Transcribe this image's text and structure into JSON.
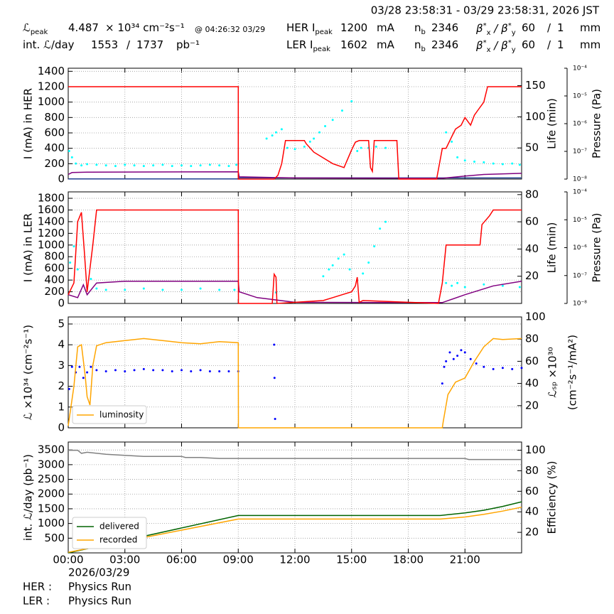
{
  "header": {
    "range": "03/28 23:58:31 - 03/29 23:58:31, 2026 JST",
    "rows": [
      {
        "label": "ℒ",
        "label_sub": "peak",
        "value": 4.487,
        "unit": "× 10³⁴ cm⁻²s⁻¹",
        "time": "@ 04:26:32 03/29",
        "ring": "HER I",
        "ring_sub": "peak",
        "current": 1200,
        "current_unit": "mA",
        "nb": "n",
        "nb_sub": "b",
        "bunches": 2346,
        "beta": "β",
        "beta_sup": "*",
        "beta_sub": "x",
        "beta_sep": "/ β",
        "beta_sup2": "*",
        "beta_sub2": "y",
        "beta_x": 60,
        "slash": "/",
        "beta_y": 1,
        "beta_unit": "mm"
      },
      {
        "label": "int. ℒ/day",
        "value": 1553,
        "sep": "/",
        "value2": 1737,
        "unit": "pb⁻¹",
        "ring": "LER I",
        "ring_sub": "peak",
        "current": 1602,
        "current_unit": "mA",
        "nb": "n",
        "nb_sub": "b",
        "bunches": 2346,
        "beta": "β",
        "beta_sup": "*",
        "beta_sub": "x",
        "beta_sep": "/ β",
        "beta_sup2": "*",
        "beta_sub2": "y",
        "beta_x": 60,
        "slash": "/",
        "beta_y": 1,
        "beta_unit": "mm"
      }
    ]
  },
  "chart_data": [
    {
      "type": "line",
      "ylabel": "I (mA) in HER",
      "y2label": [
        "Life (min)"
      ],
      "y3label": "Pressure (Pa)",
      "grid": true,
      "xlim": [
        0,
        24
      ],
      "ylim": [
        0,
        1440
      ],
      "yticks": [
        0,
        200,
        400,
        600,
        800,
        1000,
        1200,
        1400
      ],
      "y2lim": [
        0,
        178
      ],
      "y2ticks": [
        50,
        100,
        150
      ],
      "y3lim": [
        1e-08,
        0.0001
      ],
      "y3log": true,
      "y3ticks": [
        {
          "value": 1e-08,
          "label": "10⁻⁸"
        },
        {
          "value": 1e-07,
          "label": "10⁻⁷"
        },
        {
          "value": 1e-06,
          "label": "10⁻⁶"
        },
        {
          "value": 1e-05,
          "label": "10⁻⁵"
        },
        {
          "value": 0.0001,
          "label": "10⁻⁴"
        }
      ],
      "series": [
        {
          "color": "#00ffff",
          "mode": "markers",
          "axis": "y2",
          "x": [
            0.05,
            0.2,
            0.4,
            0.7,
            1.0,
            1.5,
            2.0,
            2.5,
            3.0,
            3.5,
            4.0,
            4.5,
            5,
            5.5,
            6,
            6.5,
            7,
            7.5,
            8,
            8.5,
            8.9,
            10.5,
            10.8,
            11.0,
            11.3,
            11.6,
            12.0,
            12.5,
            12.8,
            13.0,
            13.3,
            13.6,
            14.0,
            14.5,
            15.0,
            15.3,
            15.5,
            15.9,
            16.3,
            16.8,
            20.0,
            20.3,
            20.6,
            21,
            21.5,
            22,
            22.5,
            23,
            23.5,
            23.9
          ],
          "values": [
            45,
            35,
            25,
            22,
            24,
            23,
            22,
            21,
            23,
            22,
            21,
            22,
            23,
            21,
            22,
            21,
            22,
            23,
            22,
            21,
            23,
            65,
            70,
            75,
            80,
            50,
            48,
            52,
            60,
            65,
            75,
            85,
            95,
            110,
            125,
            45,
            50,
            50,
            52,
            50,
            75,
            60,
            35,
            30,
            28,
            27,
            25,
            24,
            25,
            23
          ]
        },
        {
          "color": "#1f3f8f",
          "mode": "lines",
          "x": [
            0,
            9,
            9.05,
            24
          ],
          "values": [
            2,
            2,
            15,
            15
          ]
        },
        {
          "color": "#800080",
          "mode": "lines",
          "x": [
            0,
            0.2,
            1,
            9,
            9.05,
            12,
            19.8,
            21,
            22,
            24
          ],
          "values": [
            60,
            85,
            90,
            95,
            30,
            15,
            10,
            40,
            60,
            75
          ]
        },
        {
          "color": "#ff0000",
          "mode": "lines",
          "x": [
            0,
            9,
            9,
            10.9,
            11.1,
            11.3,
            11.5,
            12.5,
            12.6,
            13,
            14,
            14.6,
            15.0,
            15.2,
            15.4,
            15.9,
            16.0,
            16.1,
            16.2,
            17.4,
            17.5,
            19.5,
            19.8,
            20.0,
            20.3,
            20.5,
            20.8,
            21.0,
            21.3,
            21.5,
            21.7,
            22.0,
            22.2,
            24
          ],
          "values": [
            1200,
            1200,
            0,
            0,
            50,
            200,
            500,
            500,
            460,
            350,
            200,
            150,
            380,
            480,
            500,
            500,
            150,
            100,
            500,
            500,
            0,
            0,
            400,
            400,
            550,
            650,
            700,
            800,
            700,
            830,
            900,
            1000,
            1200,
            1200
          ]
        }
      ]
    },
    {
      "type": "line",
      "ylabel": "I (mA) in LER",
      "y2label": [
        "Life (min)"
      ],
      "y3label": "Pressure (Pa)",
      "grid": true,
      "xlim": [
        0,
        24
      ],
      "ylim": [
        0,
        1910
      ],
      "yticks": [
        0,
        200,
        400,
        600,
        800,
        1000,
        1200,
        1400,
        1600,
        1800
      ],
      "y2lim": [
        0,
        82
      ],
      "y2ticks": [
        20,
        40,
        60,
        80
      ],
      "y3lim": [
        1e-08,
        0.0001
      ],
      "y3log": true,
      "y3ticks": [
        {
          "value": 1e-08,
          "label": "10⁻⁸"
        },
        {
          "value": 1e-07,
          "label": "10⁻⁷"
        },
        {
          "value": 1e-06,
          "label": "10⁻⁶"
        },
        {
          "value": 1e-05,
          "label": "10⁻⁵"
        },
        {
          "value": 0.0001,
          "label": "10⁻⁴"
        }
      ],
      "series": [
        {
          "color": "#00ffff",
          "mode": "markers",
          "axis": "y2",
          "x": [
            0.1,
            0.3,
            0.5,
            1.0,
            1.2,
            1.5,
            2,
            3,
            4,
            5,
            6,
            7,
            8,
            8.8,
            11.0,
            13.5,
            13.8,
            14.0,
            14.3,
            14.6,
            14.9,
            15.6,
            15.9,
            16.2,
            16.5,
            16.8,
            20.0,
            20.3,
            20.6,
            21,
            22,
            23,
            23.9
          ],
          "values": [
            30,
            42,
            25,
            12,
            18,
            11,
            10,
            10,
            11,
            10,
            10,
            11,
            10,
            10,
            8,
            20,
            25,
            28,
            33,
            36,
            25,
            22,
            30,
            42,
            55,
            60,
            15,
            13,
            15,
            12,
            14,
            13,
            12
          ]
        },
        {
          "color": "#800080",
          "mode": "lines",
          "x": [
            0,
            0.5,
            0.8,
            1.0,
            1.5,
            3,
            9,
            9.05,
            10,
            12,
            19.8,
            21,
            22.5,
            24
          ],
          "values": [
            150,
            100,
            320,
            150,
            350,
            380,
            380,
            200,
            100,
            20,
            15,
            150,
            300,
            380
          ]
        },
        {
          "color": "#ff0000",
          "mode": "lines",
          "x": [
            0,
            0.3,
            0.5,
            0.7,
            0.85,
            1.0,
            1.3,
            1.5,
            1.7,
            9,
            9.01,
            10.8,
            10.9,
            11.0,
            11.05,
            13.5,
            14.0,
            14.5,
            15.0,
            15.2,
            15.3,
            15.4,
            15.6,
            19.6,
            19.8,
            20.0,
            21.8,
            21.9,
            22.3,
            22.5,
            24
          ],
          "values": [
            150,
            350,
            1400,
            1560,
            900,
            200,
            1000,
            1600,
            1600,
            1600,
            0,
            0,
            500,
            450,
            0,
            50,
            100,
            150,
            200,
            300,
            450,
            20,
            50,
            0,
            350,
            1000,
            1000,
            1350,
            1500,
            1600,
            1600
          ]
        }
      ]
    },
    {
      "type": "line",
      "ylabel": "ℒ ×10³⁴ (cm⁻²s⁻¹)",
      "y2label": [
        "ℒₛₚ ×10³⁰",
        "(cm⁻²s⁻¹/mA²)"
      ],
      "grid": true,
      "legend": "lower left",
      "xlim": [
        0,
        24
      ],
      "ylim": [
        0,
        5.34
      ],
      "yticks": [
        0,
        1,
        2,
        3,
        4,
        5
      ],
      "y2lim": [
        0,
        100
      ],
      "y2ticks": [
        20,
        40,
        60,
        80,
        100
      ],
      "series": [
        {
          "color": "#0000ff",
          "mode": "markers",
          "axis": "y2",
          "x": [
            0.05,
            0.2,
            0.4,
            0.6,
            0.8,
            1.0,
            1.2,
            1.5,
            2,
            2.5,
            3,
            3.5,
            4,
            4.5,
            5,
            5.5,
            6,
            6.5,
            7,
            7.5,
            8,
            8.5,
            9,
            10.9,
            10.92,
            10.95,
            19.8,
            19.9,
            20.0,
            20.2,
            20.4,
            20.6,
            20.8,
            21.0,
            21.3,
            21.6,
            22,
            22.5,
            23,
            23.5,
            24
          ],
          "values": [
            35,
            55,
            50,
            55,
            45,
            50,
            55,
            52,
            51,
            52,
            51,
            52,
            53,
            52,
            52,
            51,
            52,
            51,
            52,
            51,
            51,
            51,
            51,
            75,
            45,
            8,
            40,
            55,
            60,
            68,
            62,
            65,
            70,
            68,
            62,
            58,
            55,
            53,
            54,
            53,
            54
          ]
        },
        {
          "name": "luminosity",
          "color": "#ffa500",
          "mode": "lines",
          "x": [
            0,
            0.3,
            0.5,
            0.7,
            0.9,
            1.0,
            1.15,
            1.3,
            1.5,
            2,
            3,
            4,
            5,
            6,
            7,
            8,
            9,
            9.01,
            19.8,
            19.85,
            20.1,
            20.5,
            21,
            21.5,
            22,
            22.5,
            23,
            24
          ],
          "values": [
            0.1,
            2.0,
            3.9,
            4.0,
            2.5,
            1.5,
            1.1,
            3.0,
            3.95,
            4.1,
            4.2,
            4.3,
            4.2,
            4.1,
            4.05,
            4.15,
            4.1,
            0,
            0,
            0.3,
            1.6,
            2.2,
            2.4,
            3.2,
            3.9,
            4.3,
            4.25,
            4.3
          ]
        }
      ]
    },
    {
      "type": "line",
      "ylabel": "int. ℒ/day (pb⁻¹)",
      "y2label": [
        "Efficiency (%)"
      ],
      "grid": true,
      "legend": "lower left",
      "xlim": [
        0,
        24
      ],
      "ylim": [
        0,
        3770
      ],
      "yticks": [
        500,
        1000,
        1500,
        2000,
        2500,
        3000,
        3500
      ],
      "y2lim": [
        0,
        108
      ],
      "y2ticks": [
        20,
        40,
        60,
        80,
        100
      ],
      "xticks": [
        {
          "value": 0,
          "label": "00:00"
        },
        {
          "value": 3,
          "label": "03:00"
        },
        {
          "value": 6,
          "label": "06:00"
        },
        {
          "value": 9,
          "label": "09:00"
        },
        {
          "value": 12,
          "label": "12:00"
        },
        {
          "value": 15,
          "label": "15:00"
        },
        {
          "value": 18,
          "label": "18:00"
        },
        {
          "value": 21,
          "label": "21:00"
        }
      ],
      "series": [
        {
          "color": "#808080",
          "mode": "lines",
          "axis": "y2",
          "x": [
            0,
            0.5,
            0.7,
            1.0,
            2,
            3,
            4,
            5,
            6,
            6.2,
            7,
            8,
            9,
            12,
            15,
            20,
            21,
            21.2,
            24
          ],
          "values": [
            100,
            100,
            97,
            98,
            96,
            95,
            94,
            94,
            94,
            93,
            93,
            92,
            92,
            92,
            92,
            92,
            92,
            91,
            91
          ]
        },
        {
          "name": "delivered",
          "color": "#006400",
          "mode": "lines",
          "x": [
            0,
            9,
            19.7,
            21,
            22,
            23,
            24
          ],
          "values": [
            0,
            1270,
            1270,
            1360,
            1450,
            1580,
            1737
          ]
        },
        {
          "name": "recorded",
          "color": "#ffa500",
          "mode": "lines",
          "x": [
            0,
            9,
            19.7,
            21,
            22,
            23,
            24
          ],
          "values": [
            20,
            1150,
            1150,
            1220,
            1310,
            1420,
            1553
          ]
        }
      ]
    }
  ],
  "footer": {
    "date": "2026/03/29",
    "her_label": "HER :",
    "her_mode": "Physics Run",
    "ler_label": "LER :",
    "ler_mode": "Physics Run"
  }
}
